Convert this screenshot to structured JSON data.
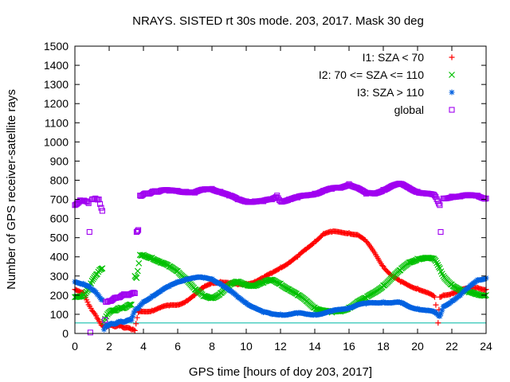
{
  "chart_data": {
    "type": "scatter",
    "title": "NRAYS. SISTED rt 30s mode. 203, 2017. Mask 30 deg",
    "xlabel": "GPS time [hours of doy 203, 2017]",
    "ylabel": "Number of GPS receiver-satellite rays",
    "xlim": [
      0,
      24
    ],
    "ylim": [
      0,
      1500
    ],
    "xticks": [
      0,
      2,
      4,
      6,
      8,
      10,
      12,
      14,
      16,
      18,
      20,
      22,
      24
    ],
    "yticks": [
      0,
      100,
      200,
      300,
      400,
      500,
      600,
      700,
      800,
      900,
      1000,
      1100,
      1200,
      1300,
      1400,
      1500
    ],
    "grid": false,
    "legend_position": "top-right",
    "reference_line": {
      "y": 55,
      "color": "#2ec4b6"
    },
    "series": [
      {
        "name": "I1: SZA < 70",
        "marker": "+",
        "color": "#ff0000",
        "points": [
          [
            0,
            230
          ],
          [
            0.5,
            215
          ],
          [
            0.8,
            150
          ],
          [
            1.0,
            120
          ],
          [
            1.3,
            80
          ],
          [
            1.6,
            40
          ],
          [
            1.8,
            40
          ],
          [
            2.2,
            40
          ],
          [
            2.6,
            40
          ],
          [
            3.0,
            30
          ],
          [
            3.3,
            20
          ],
          [
            3.5,
            15
          ],
          [
            3.7,
            110
          ],
          [
            4,
            115
          ],
          [
            4.5,
            120
          ],
          [
            5,
            135
          ],
          [
            5.5,
            145
          ],
          [
            6,
            150
          ],
          [
            6.5,
            170
          ],
          [
            7,
            200
          ],
          [
            7.5,
            240
          ],
          [
            8,
            265
          ],
          [
            8.5,
            270
          ],
          [
            9,
            262
          ],
          [
            9.5,
            255
          ],
          [
            10,
            260
          ],
          [
            10.5,
            270
          ],
          [
            11,
            290
          ],
          [
            11.5,
            315
          ],
          [
            12,
            345
          ],
          [
            12.5,
            370
          ],
          [
            13,
            400
          ],
          [
            13.5,
            440
          ],
          [
            14,
            480
          ],
          [
            14.5,
            520
          ],
          [
            15,
            530
          ],
          [
            15.5,
            528
          ],
          [
            16,
            525
          ],
          [
            16.5,
            515
          ],
          [
            17,
            480
          ],
          [
            17.5,
            420
          ],
          [
            18,
            350
          ],
          [
            18.5,
            300
          ],
          [
            19,
            270
          ],
          [
            19.5,
            250
          ],
          [
            20,
            235
          ],
          [
            20.5,
            215
          ],
          [
            21,
            190
          ],
          [
            21.2,
            55
          ],
          [
            21.3,
            190
          ],
          [
            21.5,
            200
          ],
          [
            22,
            210
          ],
          [
            22.5,
            225
          ],
          [
            23,
            235
          ],
          [
            23.5,
            240
          ],
          [
            24,
            230
          ]
        ]
      },
      {
        "name": "I2: 70 <= SZA <= 110",
        "marker": "x",
        "color": "#00c000",
        "points": [
          [
            0,
            190
          ],
          [
            0.5,
            200
          ],
          [
            0.8,
            230
          ],
          [
            1.0,
            275
          ],
          [
            1.3,
            310
          ],
          [
            1.5,
            335
          ],
          [
            1.6,
            340
          ],
          [
            1.7,
            60
          ],
          [
            1.9,
            100
          ],
          [
            2.2,
            120
          ],
          [
            2.6,
            130
          ],
          [
            3.0,
            140
          ],
          [
            3.3,
            150
          ],
          [
            3.5,
            300
          ],
          [
            3.6,
            290
          ],
          [
            3.8,
            410
          ],
          [
            4,
            410
          ],
          [
            4.5,
            395
          ],
          [
            5,
            370
          ],
          [
            5.5,
            350
          ],
          [
            6,
            325
          ],
          [
            6.5,
            285
          ],
          [
            7,
            230
          ],
          [
            7.5,
            195
          ],
          [
            8,
            185
          ],
          [
            8.5,
            210
          ],
          [
            9,
            250
          ],
          [
            9.5,
            270
          ],
          [
            10,
            255
          ],
          [
            10.5,
            250
          ],
          [
            11,
            265
          ],
          [
            11.5,
            280
          ],
          [
            12,
            260
          ],
          [
            12.5,
            230
          ],
          [
            13,
            200
          ],
          [
            13.5,
            170
          ],
          [
            14,
            135
          ],
          [
            14.5,
            120
          ],
          [
            15,
            110
          ],
          [
            15.5,
            115
          ],
          [
            16,
            135
          ],
          [
            16.5,
            165
          ],
          [
            17,
            185
          ],
          [
            17.5,
            215
          ],
          [
            18,
            250
          ],
          [
            18.5,
            290
          ],
          [
            19,
            330
          ],
          [
            19.5,
            370
          ],
          [
            20,
            390
          ],
          [
            20.5,
            395
          ],
          [
            21,
            385
          ],
          [
            21.3,
            340
          ],
          [
            21.5,
            300
          ],
          [
            22,
            255
          ],
          [
            22.5,
            225
          ],
          [
            23,
            215
          ],
          [
            23.5,
            205
          ],
          [
            24,
            200
          ]
        ]
      },
      {
        "name": "I3: SZA > 110",
        "marker": "*",
        "color": "#0060e0",
        "points": [
          [
            0,
            270
          ],
          [
            0.5,
            260
          ],
          [
            0.8,
            245
          ],
          [
            1.0,
            230
          ],
          [
            1.3,
            205
          ],
          [
            1.6,
            175
          ],
          [
            1.7,
            20
          ],
          [
            1.8,
            40
          ],
          [
            2.2,
            50
          ],
          [
            2.6,
            60
          ],
          [
            3.0,
            65
          ],
          [
            3.3,
            70
          ],
          [
            3.5,
            120
          ],
          [
            3.7,
            130
          ],
          [
            4,
            165
          ],
          [
            4.5,
            195
          ],
          [
            5,
            220
          ],
          [
            5.5,
            245
          ],
          [
            6,
            270
          ],
          [
            6.5,
            285
          ],
          [
            7,
            290
          ],
          [
            7.5,
            290
          ],
          [
            8,
            285
          ],
          [
            8.5,
            260
          ],
          [
            9,
            225
          ],
          [
            9.5,
            190
          ],
          [
            10,
            160
          ],
          [
            10.5,
            135
          ],
          [
            11,
            110
          ],
          [
            11.5,
            100
          ],
          [
            12,
            100
          ],
          [
            12.5,
            100
          ],
          [
            13,
            105
          ],
          [
            13.5,
            100
          ],
          [
            14,
            100
          ],
          [
            14.5,
            105
          ],
          [
            15,
            115
          ],
          [
            15.5,
            125
          ],
          [
            16,
            135
          ],
          [
            16.5,
            150
          ],
          [
            17,
            155
          ],
          [
            17.5,
            160
          ],
          [
            18,
            165
          ],
          [
            18.5,
            160
          ],
          [
            19,
            160
          ],
          [
            19.5,
            140
          ],
          [
            20,
            130
          ],
          [
            20.5,
            120
          ],
          [
            21,
            110
          ],
          [
            21.3,
            90
          ],
          [
            21.5,
            140
          ],
          [
            22,
            170
          ],
          [
            22.5,
            200
          ],
          [
            23,
            240
          ],
          [
            23.5,
            280
          ],
          [
            24,
            290
          ]
        ]
      },
      {
        "name": "global",
        "marker": "square",
        "color": "#a000f0",
        "points": [
          [
            0,
            670
          ],
          [
            0.3,
            695
          ],
          [
            0.6,
            690
          ],
          [
            0.8,
            680
          ],
          [
            1.0,
            700
          ],
          [
            1.2,
            705
          ],
          [
            1.4,
            700
          ],
          [
            1.6,
            640
          ],
          [
            1.8,
            165
          ],
          [
            2.0,
            170
          ],
          [
            2.4,
            185
          ],
          [
            2.8,
            200
          ],
          [
            3.2,
            205
          ],
          [
            3.5,
            210
          ],
          [
            3.6,
            530
          ],
          [
            3.7,
            540
          ],
          [
            0.85,
            530
          ],
          [
            0.9,
            5
          ],
          [
            1.75,
            70
          ],
          [
            3.8,
            720
          ],
          [
            4.2,
            730
          ],
          [
            4.6,
            740
          ],
          [
            5,
            745
          ],
          [
            5.5,
            745
          ],
          [
            6,
            745
          ],
          [
            6.5,
            740
          ],
          [
            7,
            735
          ],
          [
            7.5,
            750
          ],
          [
            8,
            755
          ],
          [
            8.5,
            740
          ],
          [
            9,
            720
          ],
          [
            9.5,
            700
          ],
          [
            10,
            690
          ],
          [
            10.5,
            690
          ],
          [
            11,
            690
          ],
          [
            11.5,
            700
          ],
          [
            11.8,
            720
          ],
          [
            12,
            690
          ],
          [
            12.5,
            700
          ],
          [
            13,
            710
          ],
          [
            13.5,
            720
          ],
          [
            14,
            730
          ],
          [
            14.5,
            745
          ],
          [
            15,
            755
          ],
          [
            15.5,
            760
          ],
          [
            16,
            780
          ],
          [
            16.5,
            760
          ],
          [
            17,
            730
          ],
          [
            17.5,
            730
          ],
          [
            18,
            750
          ],
          [
            18.5,
            770
          ],
          [
            19,
            780
          ],
          [
            19.5,
            760
          ],
          [
            20,
            740
          ],
          [
            20.5,
            730
          ],
          [
            21,
            720
          ],
          [
            21.3,
            670
          ],
          [
            21.35,
            530
          ],
          [
            21.5,
            705
          ],
          [
            22,
            715
          ],
          [
            22.5,
            715
          ],
          [
            23,
            720
          ],
          [
            23.5,
            720
          ],
          [
            24,
            705
          ]
        ]
      }
    ]
  }
}
